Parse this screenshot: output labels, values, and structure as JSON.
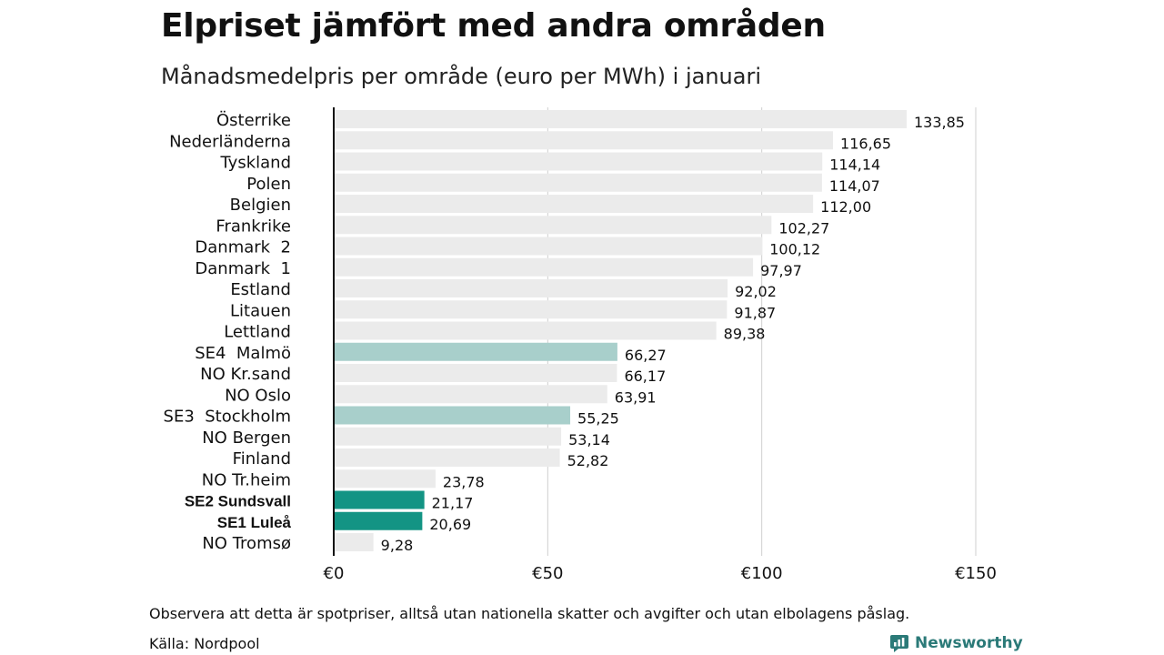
{
  "title": "Elpriset jämfört med andra områden",
  "subtitle": "Månadsmedelpris per område (euro per MWh) i januari",
  "note": "Observera att detta är spotpriser, alltså utan nationella skatter och avgifter och utan elbolagens påslag.",
  "source": "Källa: Nordpool",
  "logo": {
    "text": "Newsworthy",
    "icon": "newsworthy-logo-icon",
    "color": "#2b7a78"
  },
  "colors": {
    "default_bar": "#ebebeb",
    "se_light": "#a8cfcb",
    "se_dark": "#139484",
    "gridline": "#cfcfcf",
    "baseline": "#111111"
  },
  "chart_data": {
    "type": "bar",
    "orientation": "horizontal",
    "title": "Elpriset jämfört med andra områden",
    "subtitle": "Månadsmedelpris per område (euro per MWh) i januari",
    "xlabel": "",
    "ylabel": "",
    "xlim": [
      0,
      150
    ],
    "xticks": [
      0,
      50,
      100,
      150
    ],
    "xtick_labels": [
      "€0",
      "€50",
      "€100",
      "€150"
    ],
    "grid": true,
    "legend": "none",
    "categories": [
      "Österrike",
      "Nederländerna",
      "Tyskland",
      "Polen",
      "Belgien",
      "Frankrike",
      "Danmark  2",
      "Danmark  1",
      "Estland",
      "Litauen",
      "Lettland",
      "SE4  Malmö",
      "NO Kr.sand",
      "NO Oslo",
      "SE3  Stockholm",
      "NO Bergen",
      "Finland",
      "NO Tr.heim",
      "SE2 Sundsvall",
      "SE1 Luleå",
      "NO Tromsø"
    ],
    "values": [
      133.85,
      116.65,
      114.14,
      114.07,
      112.0,
      102.27,
      100.12,
      97.97,
      92.02,
      91.87,
      89.38,
      66.27,
      66.17,
      63.91,
      55.25,
      53.14,
      52.82,
      23.78,
      21.17,
      20.69,
      9.28
    ],
    "value_labels": [
      "133,85",
      "116,65",
      "114,14",
      "114,07",
      "112,00",
      "102,27",
      "100,12",
      "97,97",
      "92,02",
      "91,87",
      "89,38",
      "66,27",
      "66,17",
      "63,91",
      "55,25",
      "53,14",
      "52,82",
      "23,78",
      "21,17",
      "20,69",
      "9,28"
    ],
    "highlight": [
      "none",
      "none",
      "none",
      "none",
      "none",
      "none",
      "none",
      "none",
      "none",
      "none",
      "none",
      "light",
      "none",
      "none",
      "light",
      "none",
      "none",
      "none",
      "dark",
      "dark",
      "none"
    ],
    "bold_labels": [
      "SE2 Sundsvall",
      "SE1 Luleå"
    ]
  }
}
